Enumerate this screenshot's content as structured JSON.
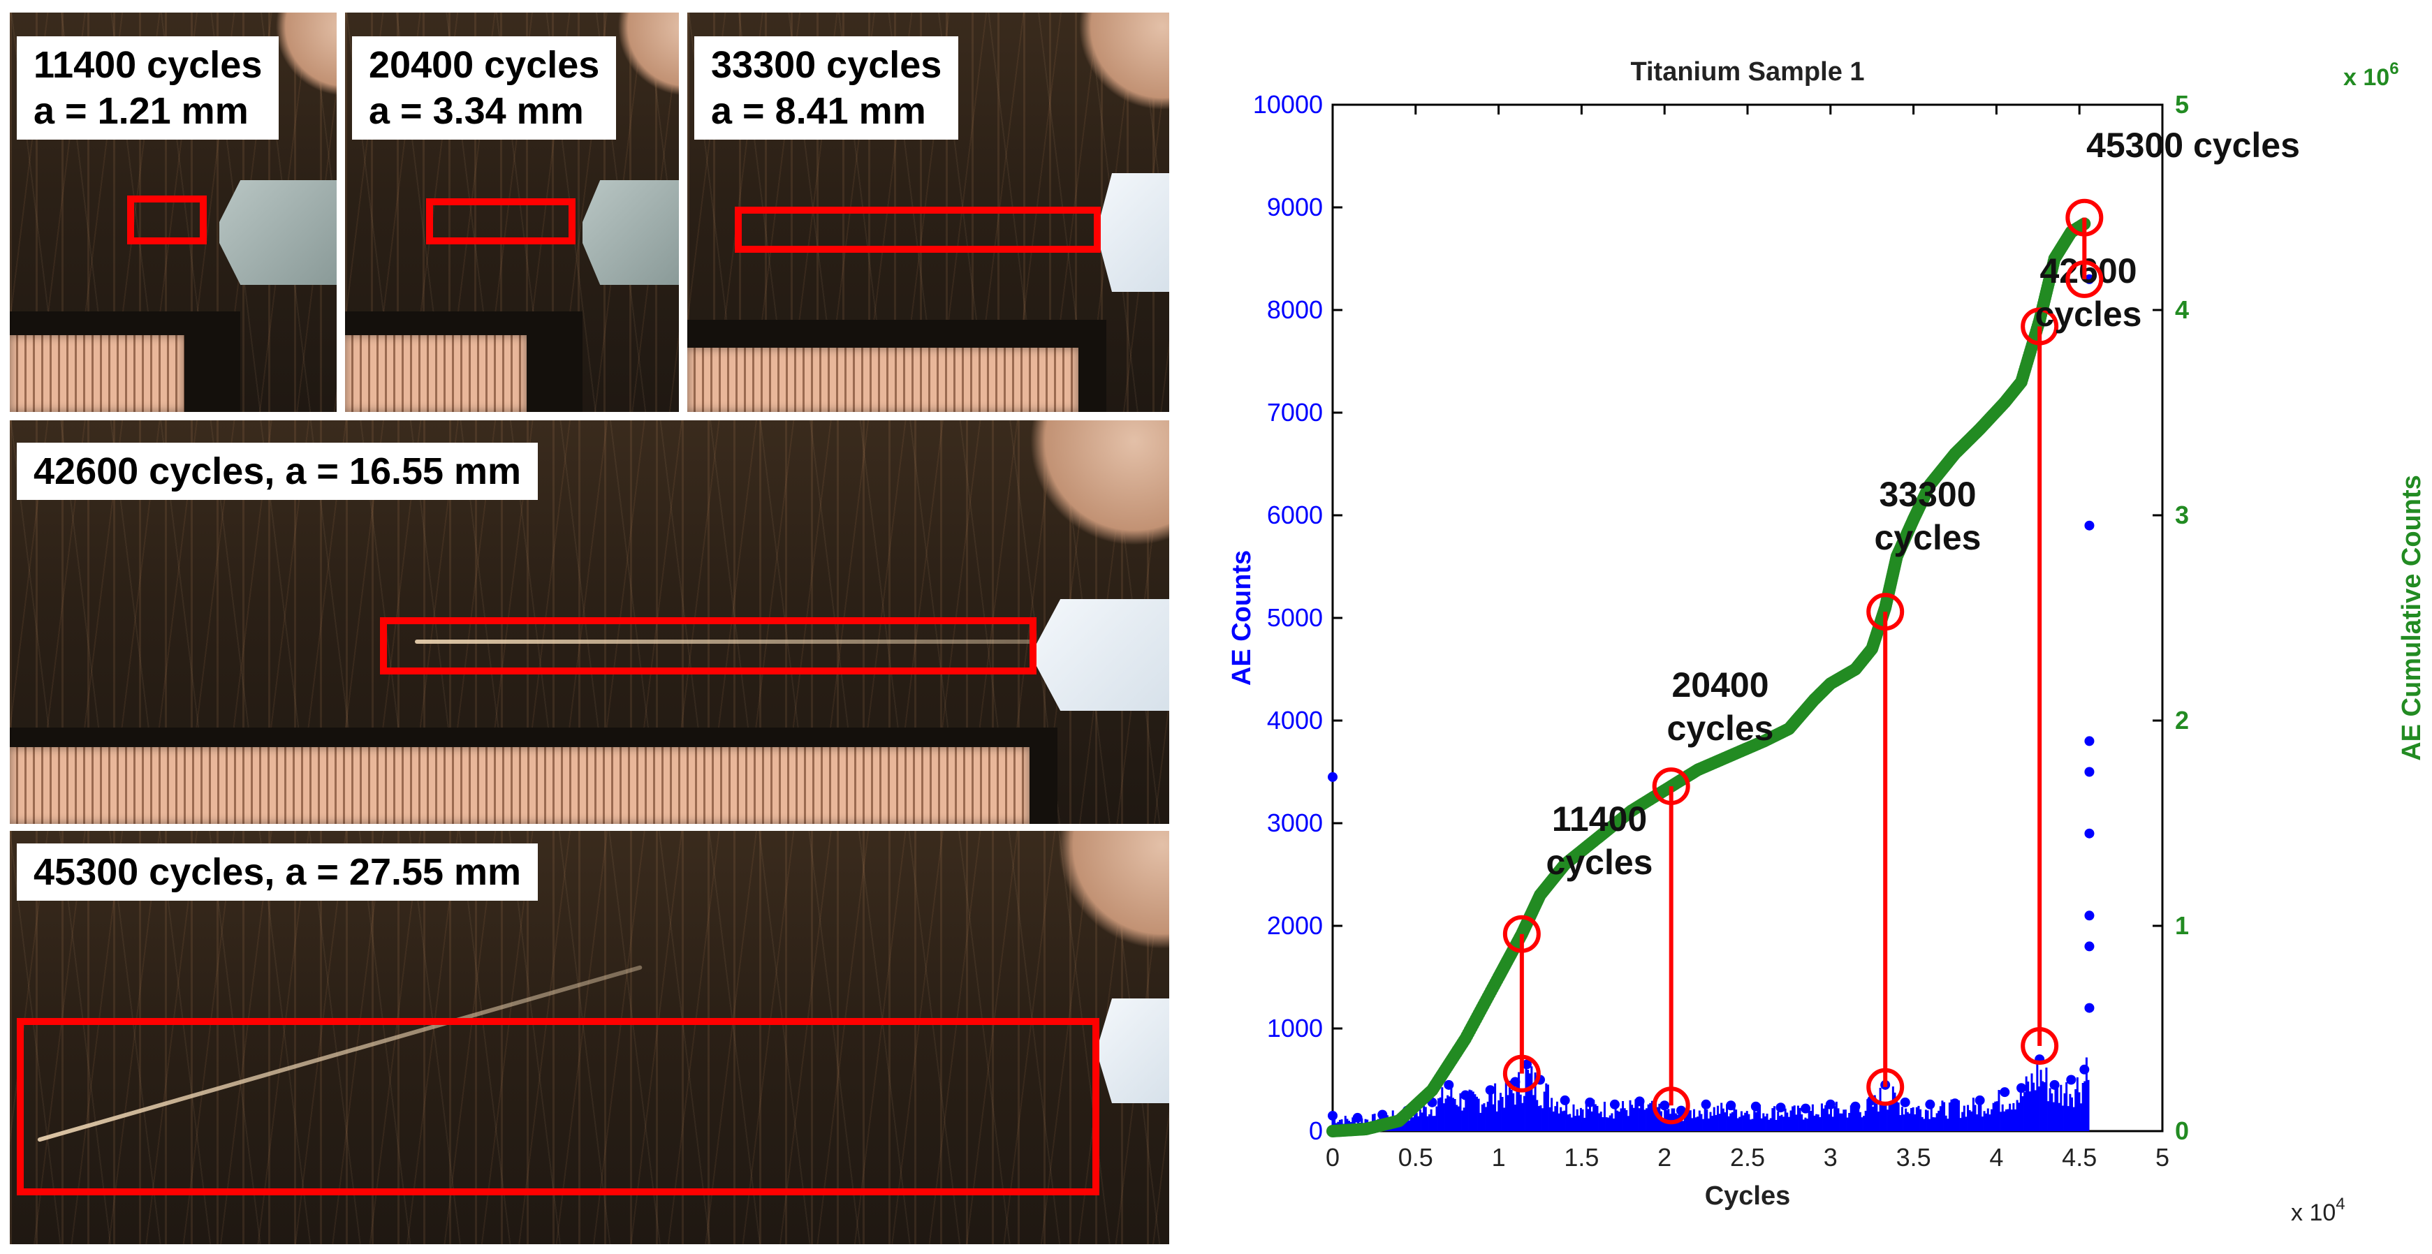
{
  "photos": {
    "p1": {
      "line1": "11400 cycles",
      "line2": "a = 1.21 mm"
    },
    "p2": {
      "line1": "20400 cycles",
      "line2": "a = 3.34 mm"
    },
    "p3": {
      "line1": "33300 cycles",
      "line2": "a = 8.41 mm"
    },
    "p4": {
      "label": "42600 cycles, a = 16.55 mm"
    },
    "p5": {
      "label": "45300 cycles, a = 27.55 mm"
    }
  },
  "colors": {
    "ae_counts": "#0000ff",
    "cumulative": "#228b22",
    "marker": "#ff0000"
  },
  "chart_data": {
    "type": "scatter",
    "title": "Titanium Sample 1",
    "xlabel": "Cycles",
    "x_multiplier": "x 10",
    "x_multiplier_exp": "4",
    "x_ticks": [
      "0",
      "0.5",
      "1",
      "1.5",
      "2",
      "2.5",
      "3",
      "3.5",
      "4",
      "4.5",
      "5"
    ],
    "xlim": [
      0,
      50000
    ],
    "ylabel_left": "AE Counts",
    "ylim_left": [
      0,
      10000
    ],
    "y_ticks_left": [
      "0",
      "1000",
      "2000",
      "3000",
      "4000",
      "5000",
      "6000",
      "7000",
      "8000",
      "9000",
      "10000"
    ],
    "ylabel_right": "AE Cumulative Counts",
    "right_multiplier": "x 10",
    "right_multiplier_exp": "6",
    "ylim_right": [
      0,
      5
    ],
    "y_ticks_right": [
      "0",
      "1",
      "2",
      "3",
      "4",
      "5"
    ],
    "series": [
      {
        "name": "AE Counts",
        "color": "#0000ff",
        "x": [
          0,
          1500,
          3000,
          4500,
          6000,
          7000,
          8000,
          9500,
          11000,
          11700,
          12500,
          14000,
          15500,
          17000,
          18500,
          20000,
          21000,
          22500,
          24000,
          25500,
          27000,
          28500,
          30000,
          31500,
          32500,
          33300,
          34500,
          36000,
          37500,
          39000,
          40500,
          41500,
          42600,
          43500,
          44500,
          45300,
          45600,
          45600,
          45600,
          45600,
          45600,
          45600,
          45600,
          45600,
          0
        ],
        "y": [
          150,
          130,
          160,
          200,
          280,
          450,
          350,
          400,
          480,
          650,
          500,
          300,
          280,
          260,
          290,
          250,
          200,
          260,
          250,
          240,
          230,
          220,
          260,
          240,
          300,
          450,
          280,
          260,
          270,
          300,
          380,
          420,
          700,
          450,
          500,
          600,
          1200,
          1800,
          2100,
          2900,
          3500,
          3800,
          5900,
          8300,
          3450
        ]
      },
      {
        "name": "AE Cumulative Counts",
        "color": "#228b22",
        "x": [
          0,
          2000,
          4000,
          6000,
          8000,
          10000,
          11400,
          12500,
          14000,
          16000,
          18000,
          20400,
          22000,
          24000,
          26000,
          27500,
          29000,
          30000,
          31500,
          32500,
          33300,
          34000,
          35000,
          36000,
          37500,
          39000,
          40500,
          41500,
          42600,
          43500,
          44500,
          45300
        ],
        "y": [
          0.0,
          0.01,
          0.05,
          0.2,
          0.45,
          0.75,
          0.96,
          1.15,
          1.3,
          1.43,
          1.56,
          1.68,
          1.76,
          1.83,
          1.9,
          1.96,
          2.1,
          2.18,
          2.25,
          2.35,
          2.55,
          2.8,
          2.98,
          3.15,
          3.3,
          3.42,
          3.55,
          3.65,
          3.95,
          4.25,
          4.38,
          4.42
        ]
      }
    ],
    "annotations": [
      {
        "line1": "11400",
        "line2": "cycles",
        "x": 11400,
        "y_cum": 0.96,
        "y_ae": 560
      },
      {
        "line1": "20400",
        "line2": "cycles",
        "x": 20400,
        "y_cum": 1.68,
        "y_ae": 250
      },
      {
        "line1": "33300",
        "line2": "cycles",
        "x": 33300,
        "y_cum": 2.53,
        "y_ae": 430
      },
      {
        "line1": "42600",
        "line2": "cycles",
        "x": 42600,
        "y_cum": 3.92,
        "y_ae": 830
      },
      {
        "line1": "45300 cycles",
        "line2": "",
        "x": 45300,
        "y_cum": 4.45,
        "y_ae": 8300
      }
    ]
  }
}
